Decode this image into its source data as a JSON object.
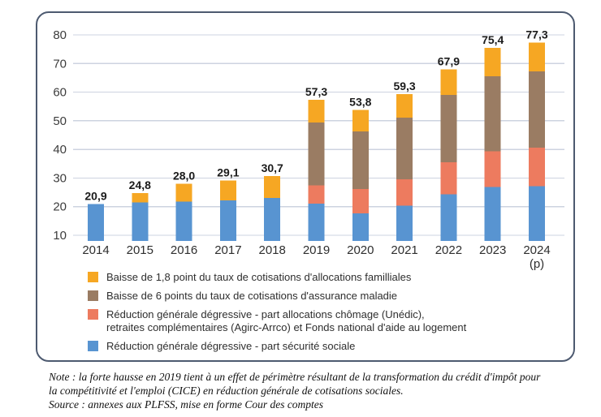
{
  "chart_data": {
    "type": "bar",
    "stacked": true,
    "title": "",
    "xlabel": "",
    "ylabel": "",
    "grid": true,
    "legend_position": "bottom",
    "y_min": 10,
    "y_max": 80,
    "axis_floor": 8,
    "y_ticks": [
      10,
      20,
      30,
      40,
      50,
      60,
      70,
      80
    ],
    "categories": [
      "2014",
      "2015",
      "2016",
      "2017",
      "2018",
      "2019",
      "2020",
      "2021",
      "2022",
      "2023",
      "2024"
    ],
    "category_sublabels": [
      "",
      "",
      "",
      "",
      "",
      "",
      "",
      "",
      "",
      "",
      "(p)"
    ],
    "series": [
      {
        "name": "Réduction générale dégressive - part sécurité sociale",
        "color": "#5894d1",
        "values": [
          20.9,
          21.5,
          21.8,
          22.2,
          23.1,
          21.0,
          17.6,
          20.3,
          24.3,
          26.8,
          27.1
        ]
      },
      {
        "name": "Réduction générale dégressive - part allocations chômage (Unédic), retraites complémentaires (Agirc-Arrco) et Fonds national d'aide au logement",
        "color": "#ed7b5f",
        "values": [
          0,
          0,
          0,
          0,
          0,
          6.4,
          8.6,
          9.3,
          11.2,
          12.6,
          13.5
        ]
      },
      {
        "name": "Baisse de 6 points du taux de cotisations d'assurance maladie",
        "color": "#9a7c63",
        "values": [
          0,
          0,
          0,
          0,
          0,
          22.0,
          20.1,
          21.5,
          23.5,
          26.2,
          26.6
        ]
      },
      {
        "name": "Baisse de 1,8 point du taux de cotisations d'allocations familliales",
        "color": "#f6a723",
        "values": [
          0,
          3.3,
          6.2,
          6.9,
          7.6,
          7.9,
          7.5,
          8.2,
          8.9,
          9.8,
          10.1
        ]
      }
    ],
    "total_labels": [
      "20,9",
      "24,8",
      "28,0",
      "29,1",
      "30,7",
      "57,3",
      "53,8",
      "59,3",
      "67,9",
      "75,4",
      "77,3"
    ],
    "colors": {
      "gridline": "#cdd3e0",
      "frame_border": "#4d5a70",
      "tick_text": "#3c3c3c",
      "year_text": "#2e2e2e",
      "total_text": "#1b1b1b"
    }
  },
  "legend": {
    "items": [
      {
        "color": "#f6a723",
        "lines": [
          "Baisse de 1,8 point du taux de cotisations d'allocations familliales"
        ]
      },
      {
        "color": "#9a7c63",
        "lines": [
          "Baisse de 6 points du taux de cotisations d'assurance maladie"
        ]
      },
      {
        "color": "#ed7b5f",
        "lines": [
          "Réduction générale dégressive - part allocations chômage (Unédic),",
          "retraites complémentaires (Agirc-Arrco) et Fonds national d'aide au logement"
        ]
      },
      {
        "color": "#5894d1",
        "lines": [
          "Réduction générale dégressive - part sécurité sociale"
        ]
      }
    ]
  },
  "note": {
    "line1": "Note : la forte hausse en 2019 tient à un effet de périmètre résultant de la transformation du crédit d'impôt pour",
    "line2": "la compétitivité et l'emploi (CICE) en réduction générale de cotisations sociales.",
    "source": "Source : annexes aux PLFSS, mise en forme Cour des comptes"
  }
}
